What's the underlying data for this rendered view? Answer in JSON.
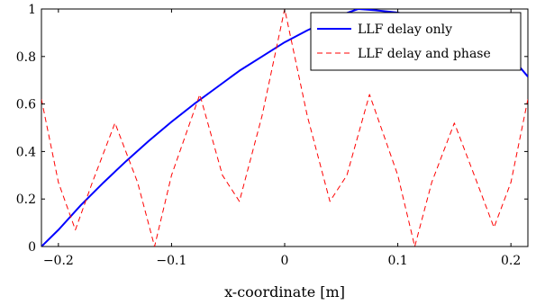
{
  "chart_data": {
    "type": "line",
    "title": "",
    "xlabel": "x-coordinate [m]",
    "ylabel": "",
    "xlim": [
      -0.215,
      0.215
    ],
    "ylim": [
      0,
      1
    ],
    "xticks": [
      -0.2,
      -0.1,
      0,
      0.1,
      0.2
    ],
    "xtick_labels": [
      "−0.2",
      "−0.1",
      "0",
      "0.1",
      "0.2"
    ],
    "yticks": [
      0,
      0.2,
      0.4,
      0.6,
      0.8,
      1
    ],
    "ytick_labels": [
      "0",
      "0.2",
      "0.4",
      "0.6",
      "0.8",
      "1"
    ],
    "grid": false,
    "legend_position": "top-right",
    "series": [
      {
        "name": "LLF delay only",
        "color": "#0000ff",
        "style": "solid",
        "x": [
          -0.215,
          -0.2,
          -0.18,
          -0.16,
          -0.14,
          -0.12,
          -0.1,
          -0.08,
          -0.06,
          -0.04,
          -0.02,
          0,
          0.02,
          0.04,
          0.05,
          0.065,
          0.08,
          0.1,
          0.12,
          0.14,
          0.16,
          0.18,
          0.2,
          0.215
        ],
        "y": [
          0,
          0.07,
          0.175,
          0.27,
          0.36,
          0.445,
          0.525,
          0.6,
          0.67,
          0.74,
          0.8,
          0.86,
          0.91,
          0.955,
          0.975,
          1.0,
          0.995,
          0.985,
          0.965,
          0.935,
          0.895,
          0.855,
          0.8,
          0.715
        ]
      },
      {
        "name": "LLF delay and phase",
        "color": "#ff0000",
        "style": "dashed",
        "x": [
          -0.215,
          -0.2,
          -0.185,
          -0.17,
          -0.15,
          -0.13,
          -0.115,
          -0.1,
          -0.075,
          -0.055,
          -0.04,
          -0.02,
          0,
          0.02,
          0.04,
          0.055,
          0.075,
          0.1,
          0.115,
          0.13,
          0.15,
          0.17,
          0.185,
          0.2,
          0.215
        ],
        "y": [
          0.62,
          0.27,
          0.07,
          0.27,
          0.52,
          0.27,
          0,
          0.3,
          0.64,
          0.3,
          0.19,
          0.55,
          1.0,
          0.55,
          0.19,
          0.3,
          0.64,
          0.3,
          0,
          0.27,
          0.52,
          0.27,
          0.08,
          0.27,
          0.62
        ]
      }
    ]
  }
}
